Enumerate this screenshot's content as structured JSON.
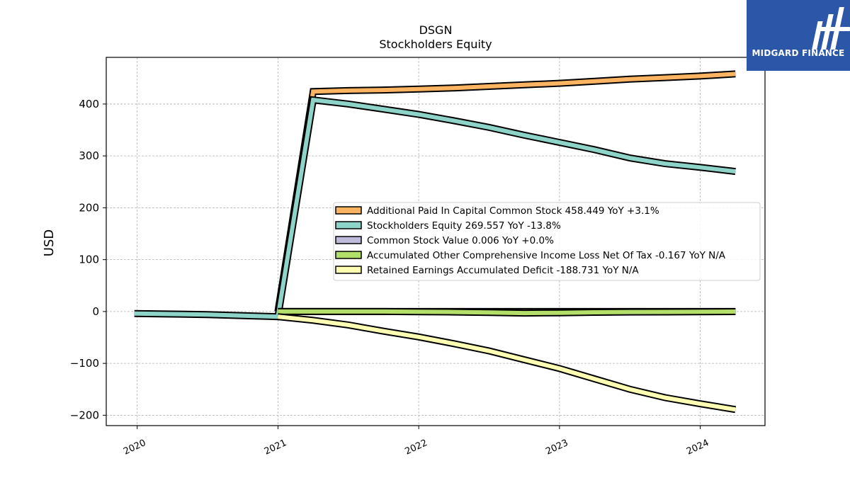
{
  "brand": {
    "name": "MIDGARD FINANCE",
    "bg_color": "#2c56a7",
    "icon": "midgard-logo-icon"
  },
  "chart_data": {
    "type": "line",
    "title": "DSGN",
    "subtitle": "Stockholders  Equity",
    "xlabel": "",
    "ylabel": "USD",
    "ylim": [
      -220,
      490
    ],
    "xlim": [
      2019.78,
      2024.46
    ],
    "x_ticks": [
      2020,
      2021,
      2022,
      2023,
      2024
    ],
    "x_tick_labels": [
      "2020",
      "2021",
      "2022",
      "2023",
      "2024"
    ],
    "y_ticks": [
      -200,
      -100,
      0,
      100,
      200,
      300,
      400
    ],
    "y_tick_labels": [
      "−200",
      "−100",
      "0",
      "100",
      "200",
      "300",
      "400"
    ],
    "grid": true,
    "legend_position": "center-right",
    "series": [
      {
        "name": "Additional Paid In Capital Common Stock",
        "legend": "Additional Paid In Capital Common Stock  458.449 YoY +3.1%",
        "color": "#fdb462",
        "x": [
          2021.0,
          2021.25,
          2021.5,
          2021.75,
          2022.0,
          2022.25,
          2022.5,
          2022.75,
          2023.0,
          2023.25,
          2023.5,
          2023.75,
          2024.0,
          2024.25
        ],
        "y": [
          0,
          424,
          426,
          427,
          429,
          431,
          434,
          437,
          440,
          444,
          448,
          451,
          454,
          458
        ]
      },
      {
        "name": "Stockholders Equity",
        "legend": "Stockholders Equity  269.557 YoY -13.8%",
        "color": "#8dd3c7",
        "x": [
          2019.98,
          2020.25,
          2020.5,
          2020.75,
          2021.0,
          2021.25,
          2021.5,
          2021.75,
          2022.0,
          2022.25,
          2022.5,
          2022.75,
          2023.0,
          2023.25,
          2023.5,
          2023.75,
          2024.0,
          2024.25
        ],
        "y": [
          -4,
          -5,
          -6,
          -8,
          -10,
          408,
          400,
          390,
          380,
          368,
          355,
          340,
          326,
          312,
          296,
          285,
          278,
          270
        ]
      },
      {
        "name": "Common Stock Value",
        "legend": "Common Stock Value  0.006 YoY +0.0%",
        "color": "#bebada",
        "x": [
          2021.0,
          2021.25,
          2021.5,
          2021.75,
          2022.0,
          2022.25,
          2022.5,
          2022.75,
          2023.0,
          2023.25,
          2023.5,
          2023.75,
          2024.0,
          2024.25
        ],
        "y": [
          0,
          0,
          0,
          0,
          0,
          0,
          0,
          0,
          0,
          0,
          0,
          0,
          0,
          0
        ]
      },
      {
        "name": "Accumulated Other Comprehensive Income Loss Net Of Tax",
        "legend": "Accumulated Other Comprehensive Income Loss Net Of Tax  -0.167 YoY N/A",
        "color": "#b3de69",
        "x": [
          2021.0,
          2021.25,
          2021.5,
          2021.75,
          2022.0,
          2022.25,
          2022.5,
          2022.75,
          2023.0,
          2023.25,
          2023.5,
          2023.75,
          2024.0,
          2024.25
        ],
        "y": [
          0,
          0,
          0,
          0,
          -0.5,
          -1,
          -2,
          -3,
          -2.5,
          -1.5,
          -1,
          -0.8,
          -0.5,
          -0.2
        ]
      },
      {
        "name": "Retained Earnings Accumulated Deficit",
        "legend": "Retained Earnings Accumulated Deficit  -188.731 YoY N/A",
        "color": "#ffffb3",
        "x": [
          2021.0,
          2021.25,
          2021.5,
          2021.75,
          2022.0,
          2022.25,
          2022.5,
          2022.75,
          2023.0,
          2023.25,
          2023.5,
          2023.75,
          2024.0,
          2024.25
        ],
        "y": [
          -10,
          -17,
          -26,
          -38,
          -49,
          -62,
          -76,
          -93,
          -110,
          -130,
          -150,
          -166,
          -178,
          -189
        ]
      }
    ]
  }
}
